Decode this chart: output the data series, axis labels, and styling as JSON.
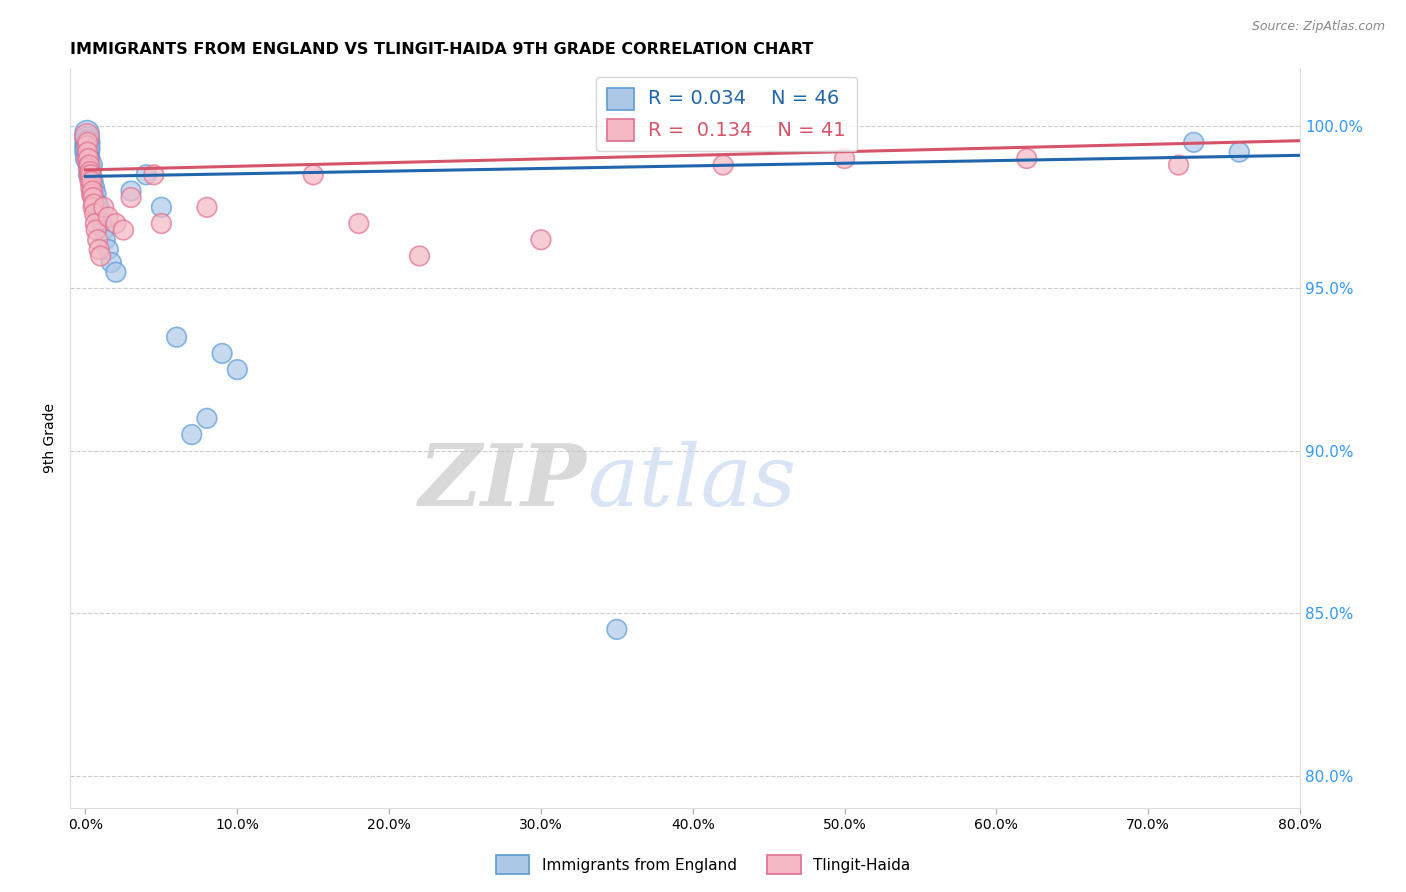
{
  "title": "IMMIGRANTS FROM ENGLAND VS TLINGIT-HAIDA 9TH GRADE CORRELATION CHART",
  "source": "Source: ZipAtlas.com",
  "ylabel": "9th Grade",
  "x_label_bottom": "Immigrants from England",
  "x_ticks": [
    0.0,
    10.0,
    20.0,
    30.0,
    40.0,
    50.0,
    60.0,
    70.0,
    80.0
  ],
  "y_ticks": [
    80.0,
    85.0,
    90.0,
    95.0,
    100.0
  ],
  "xlim": [
    -1.0,
    80.0
  ],
  "ylim": [
    79.0,
    101.8
  ],
  "blue_R": 0.034,
  "blue_N": 46,
  "pink_R": 0.134,
  "pink_N": 41,
  "blue_color": "#aec9e8",
  "pink_color": "#f4b8c4",
  "blue_edge_color": "#5b9bd5",
  "pink_edge_color": "#e07090",
  "blue_line_color": "#2166ac",
  "pink_line_color": "#d6546a",
  "watermark_zip": "ZIP",
  "watermark_atlas": "atlas",
  "blue_scatter_x": [
    0.1,
    0.1,
    0.1,
    0.1,
    0.15,
    0.15,
    0.15,
    0.2,
    0.2,
    0.2,
    0.25,
    0.25,
    0.3,
    0.3,
    0.35,
    0.35,
    0.4,
    0.4,
    0.45,
    0.5,
    0.5,
    0.5,
    0.6,
    0.6,
    0.7,
    0.8,
    0.8,
    0.9,
    1.0,
    1.1,
    1.2,
    1.3,
    1.5,
    1.7,
    2.0,
    3.0,
    4.0,
    5.0,
    6.0,
    7.0,
    8.0,
    9.0,
    10.0,
    35.0,
    73.0,
    76.0
  ],
  "blue_scatter_y": [
    99.8,
    99.6,
    99.4,
    99.2,
    99.5,
    99.3,
    99.0,
    99.1,
    98.8,
    98.5,
    99.0,
    98.7,
    98.9,
    98.6,
    98.7,
    98.4,
    98.5,
    98.2,
    98.8,
    98.3,
    98.0,
    97.8,
    98.1,
    97.8,
    97.9,
    97.6,
    97.3,
    97.5,
    97.2,
    97.0,
    96.8,
    96.5,
    96.2,
    95.8,
    95.5,
    98.0,
    98.5,
    97.5,
    93.5,
    90.5,
    91.0,
    93.0,
    92.5,
    84.5,
    99.5,
    99.2
  ],
  "blue_scatter_size": [
    120,
    120,
    120,
    120,
    120,
    120,
    120,
    80,
    80,
    80,
    80,
    80,
    80,
    80,
    80,
    80,
    80,
    80,
    80,
    80,
    80,
    80,
    80,
    80,
    80,
    80,
    80,
    80,
    80,
    80,
    80,
    80,
    80,
    80,
    80,
    80,
    80,
    80,
    80,
    80,
    80,
    80,
    80,
    80,
    80,
    80
  ],
  "pink_scatter_x": [
    0.1,
    0.1,
    0.1,
    0.15,
    0.15,
    0.2,
    0.2,
    0.25,
    0.25,
    0.3,
    0.3,
    0.35,
    0.35,
    0.4,
    0.4,
    0.45,
    0.5,
    0.5,
    0.55,
    0.6,
    0.65,
    0.7,
    0.8,
    0.9,
    1.0,
    1.2,
    1.5,
    2.0,
    2.5,
    3.0,
    4.5,
    5.0,
    8.0,
    15.0,
    18.0,
    22.0,
    30.0,
    42.0,
    50.0,
    62.0,
    72.0
  ],
  "pink_scatter_y": [
    99.7,
    99.4,
    99.0,
    99.5,
    99.2,
    99.0,
    98.7,
    98.8,
    98.5,
    98.6,
    98.3,
    98.5,
    98.1,
    98.3,
    97.9,
    98.0,
    97.8,
    97.5,
    97.6,
    97.3,
    97.0,
    96.8,
    96.5,
    96.2,
    96.0,
    97.5,
    97.2,
    97.0,
    96.8,
    97.8,
    98.5,
    97.0,
    97.5,
    98.5,
    97.0,
    96.0,
    96.5,
    98.8,
    99.0,
    99.0,
    98.8
  ],
  "pink_scatter_size": [
    120,
    80,
    80,
    80,
    80,
    80,
    80,
    80,
    80,
    80,
    80,
    80,
    80,
    80,
    80,
    80,
    80,
    80,
    80,
    80,
    80,
    80,
    80,
    80,
    80,
    80,
    80,
    80,
    80,
    80,
    80,
    80,
    80,
    80,
    80,
    80,
    80,
    80,
    80,
    80,
    80
  ]
}
